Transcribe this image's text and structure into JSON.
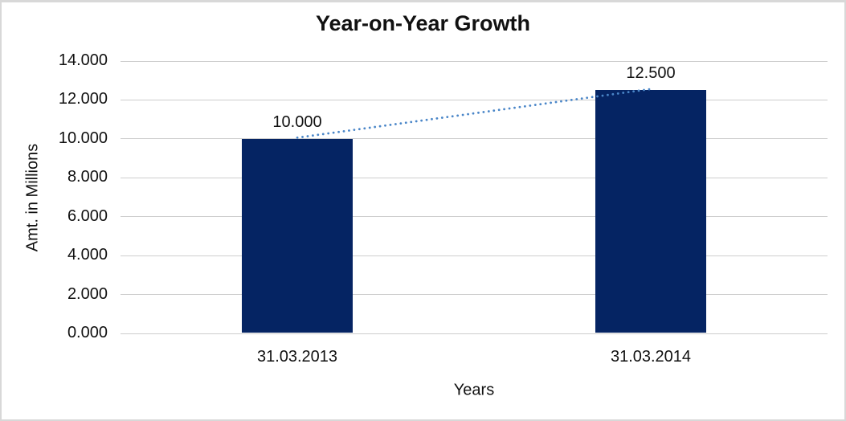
{
  "window": {
    "background": "#ffffff",
    "border_color": "#d8d8d8"
  },
  "chart_data": {
    "type": "bar",
    "title": "Year-on-Year Growth",
    "xlabel": "Years",
    "ylabel": "Amt. in Millions",
    "categories": [
      "31.03.2013",
      "31.03.2014"
    ],
    "values": [
      10.0,
      12.5
    ],
    "value_labels": [
      "10.000",
      "12.500"
    ],
    "y_ticks": [
      "14.000",
      "12.000",
      "10.000",
      "8.000",
      "6.000",
      "4.000",
      "2.000",
      "0.000"
    ],
    "ylim": [
      0,
      14
    ],
    "grid": "horizontal",
    "legend": "none",
    "bar_color": "#052463",
    "gridline_color": "#cdcdcd",
    "text_color": "#111111",
    "trendline": {
      "type": "linear",
      "style": "dotted",
      "color": "#4a86c8"
    }
  }
}
